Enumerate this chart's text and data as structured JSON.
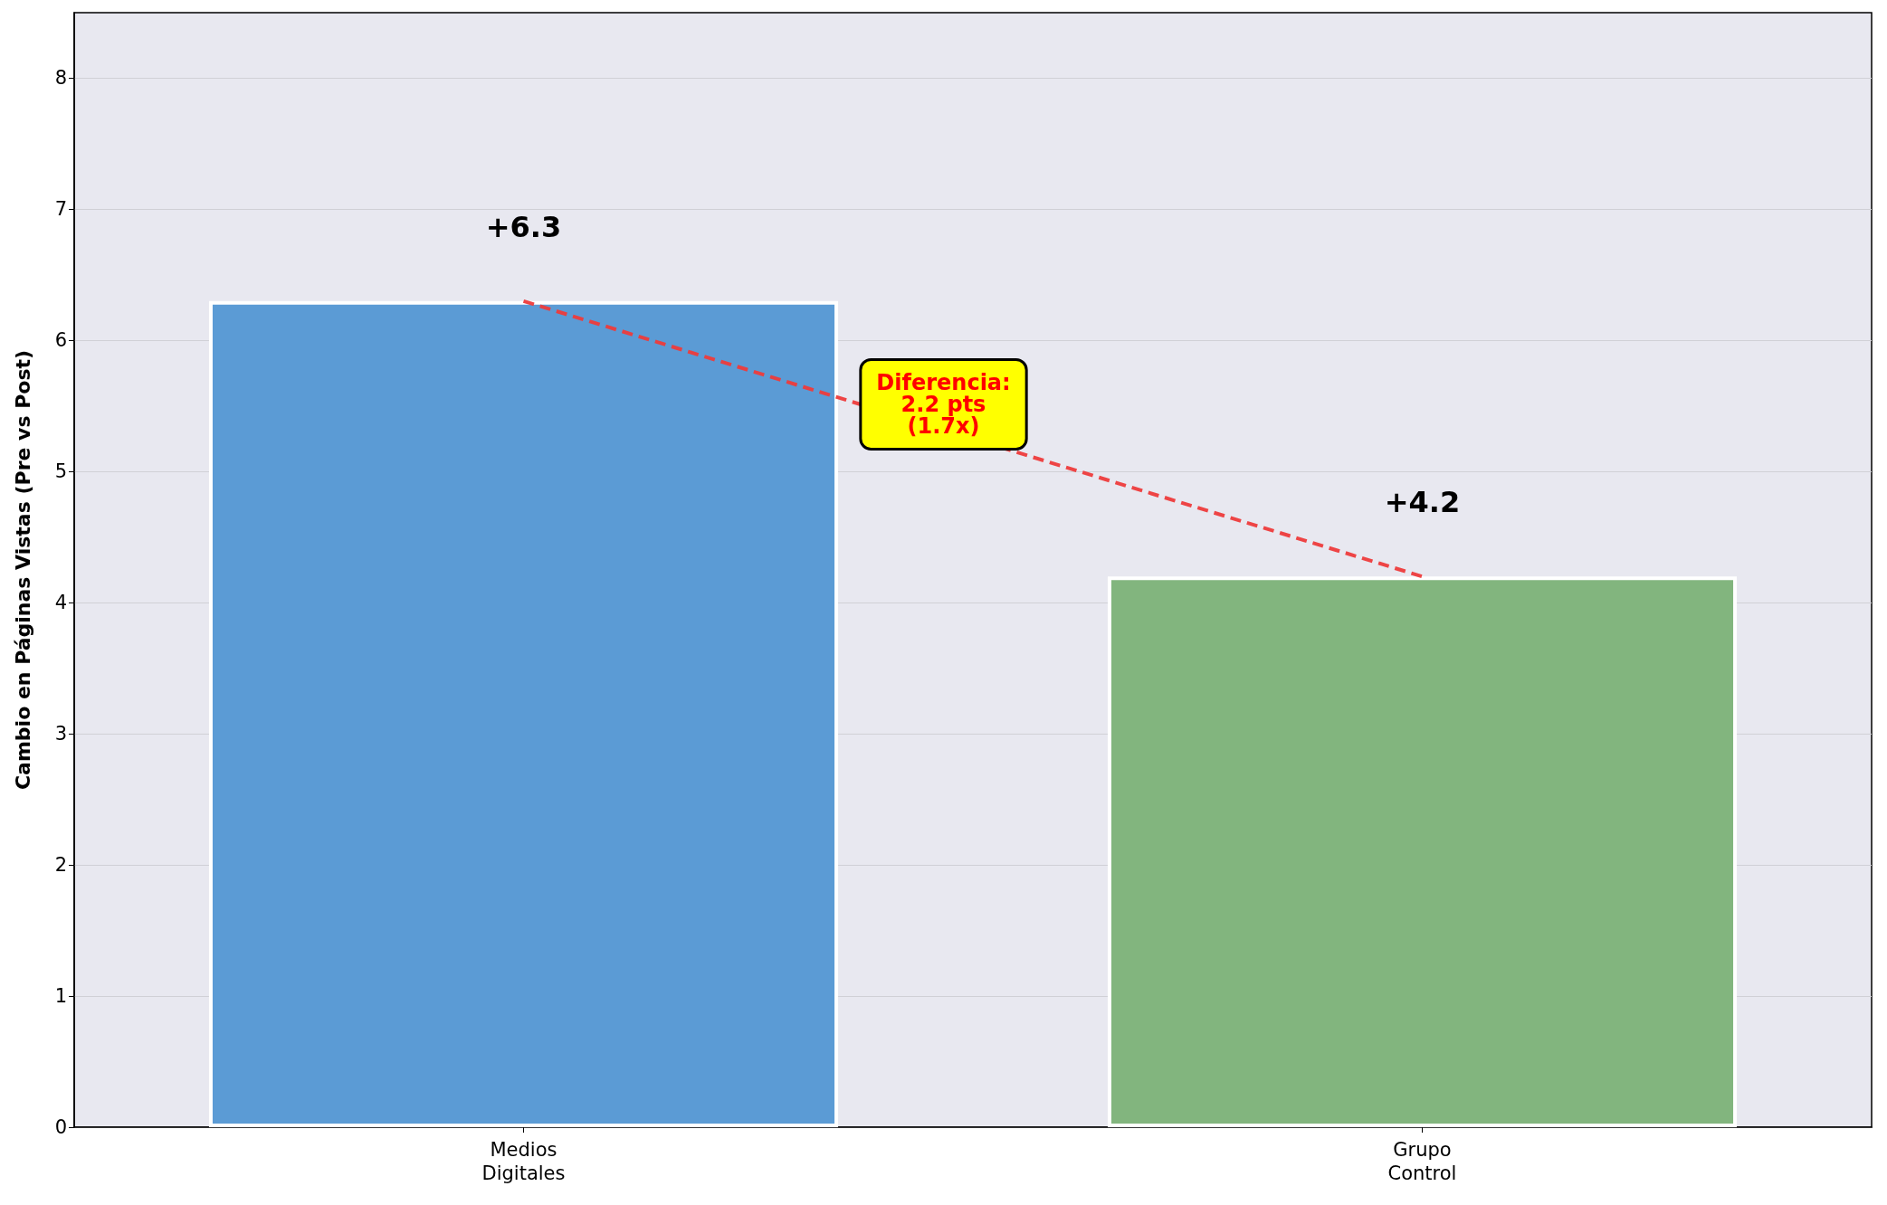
{
  "chart_data": {
    "type": "bar",
    "ylabel": "Cambio en Páginas Vistas (Pre vs Post)",
    "categories": [
      "Medios\nDigitales",
      "Grupo\nControl"
    ],
    "series": [
      {
        "colors": [
          "#5b9bd5",
          "#82b57e"
        ],
        "values": [
          6.3,
          4.2
        ],
        "value_labels": [
          "+6.3",
          "+4.2"
        ]
      },
      {
        "type": "line",
        "color": "#ee3b3b",
        "values": [
          6.3,
          4.2
        ]
      }
    ],
    "line_style": "dashed",
    "marker": "none",
    "ylim": [
      0,
      8.5
    ],
    "yticks": [
      0,
      1,
      2,
      3,
      4,
      5,
      6,
      7,
      8
    ],
    "grid": "y",
    "annotations": [
      "Diferencia:\n2.2 pts\n(1.7x)"
    ]
  }
}
